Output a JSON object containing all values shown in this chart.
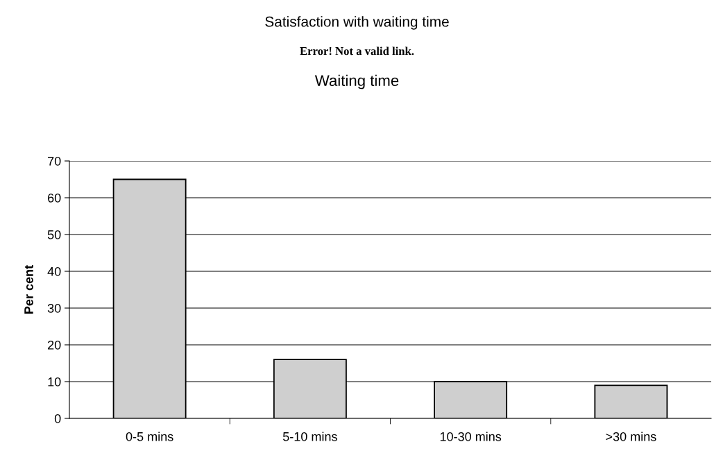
{
  "chart_data": {
    "type": "bar",
    "title": "Satisfaction with waiting time",
    "subtitle": "Waiting time",
    "annotations": [
      "Error! Not a valid link."
    ],
    "ylabel": "Per cent",
    "categories": [
      "0-5 mins",
      "5-10 mins",
      "10-30 mins",
      ">30 mins"
    ],
    "values": [
      65,
      16,
      10,
      9
    ],
    "color": "#cfcfcf",
    "ylim": [
      0,
      70
    ],
    "yticks": [
      0,
      10,
      20,
      30,
      40,
      50,
      60,
      70
    ],
    "grid": "y",
    "legend": false
  }
}
